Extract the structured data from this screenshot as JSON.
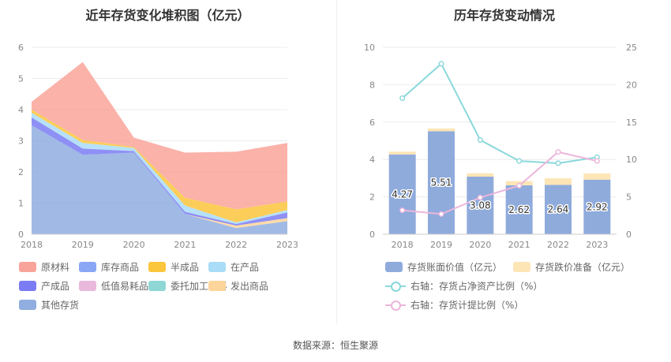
{
  "left": {
    "title": "近年存货变化堆积图（亿元）",
    "legend": [
      {
        "label": "原材料",
        "color": "#f9a49a"
      },
      {
        "label": "库存商品",
        "color": "#8aa7f5"
      },
      {
        "label": "半成品",
        "color": "#fbc63c"
      },
      {
        "label": "在产品",
        "color": "#a9dcf7"
      },
      {
        "label": "产成品",
        "color": "#7b7cf3"
      },
      {
        "label": "低值易耗品",
        "color": "#e9b9dd"
      },
      {
        "label": "委托加工材料",
        "color": "#8ed7d5"
      },
      {
        "label": "发出商品",
        "color": "#fdd59a"
      },
      {
        "label": "其他存货",
        "color": "#91aee0"
      }
    ]
  },
  "right": {
    "title": "历年存货变动情况",
    "legend": [
      {
        "label": "存货账面价值（亿元）",
        "color": "#8fabdc",
        "kind": "bar"
      },
      {
        "label": "存货跌价准备（亿元）",
        "color": "#fde5b6",
        "kind": "bar"
      },
      {
        "label": "右轴：存货占净资产比例（%）",
        "color": "#8ad8db",
        "kind": "line"
      },
      {
        "label": "右轴：存货计提比例（%）",
        "color": "#ecb6dc",
        "kind": "line"
      }
    ]
  },
  "source": "数据来源：恒生聚源",
  "chart_data": [
    {
      "type": "area",
      "stacked": true,
      "title": "近年存货变化堆积图（亿元）",
      "x": [
        "2018",
        "2019",
        "2020",
        "2021",
        "2022",
        "2023"
      ],
      "ylim": [
        0,
        6
      ],
      "yticks": [
        0,
        1,
        2,
        3,
        4,
        5,
        6
      ],
      "series": [
        {
          "name": "其他存货",
          "color": "#91aee0",
          "values": [
            3.5,
            2.55,
            2.62,
            0.65,
            0.2,
            0.42
          ]
        },
        {
          "name": "发出商品",
          "color": "#fdd59a",
          "values": [
            0.0,
            0.0,
            0.0,
            0.0,
            0.08,
            0.1
          ]
        },
        {
          "name": "委托加工材料",
          "color": "#8ed7d5",
          "values": [
            0.0,
            0.0,
            0.0,
            0.0,
            0.0,
            0.0
          ]
        },
        {
          "name": "低值易耗品",
          "color": "#e9b9dd",
          "values": [
            0.0,
            0.0,
            0.0,
            0.0,
            0.0,
            0.0
          ]
        },
        {
          "name": "产成品",
          "color": "#7b7cf3",
          "values": [
            0.25,
            0.2,
            0.05,
            0.07,
            0.05,
            0.18
          ]
        },
        {
          "name": "在产品",
          "color": "#a9dcf7",
          "values": [
            0.15,
            0.18,
            0.1,
            0.2,
            0.05,
            0.08
          ]
        },
        {
          "name": "库存商品",
          "color": "#8aa7f5",
          "values": [
            0.0,
            0.0,
            0.0,
            0.0,
            0.0,
            0.0
          ]
        },
        {
          "name": "半成品",
          "color": "#fbc63c",
          "values": [
            0.1,
            0.1,
            0.03,
            0.25,
            0.42,
            0.27
          ]
        },
        {
          "name": "原材料",
          "color": "#f9a49a",
          "values": [
            0.25,
            2.5,
            0.3,
            1.45,
            1.85,
            1.88
          ]
        }
      ],
      "grid": true
    },
    {
      "type": "bar",
      "stacked": true,
      "title": "历年存货变动情况",
      "categories": [
        "2018",
        "2019",
        "2020",
        "2021",
        "2022",
        "2023"
      ],
      "ylim": [
        0,
        10
      ],
      "yticks": [
        0,
        2,
        4,
        6,
        8,
        10
      ],
      "y2lim": [
        0,
        25
      ],
      "y2ticks": [
        0,
        5,
        10,
        15,
        20,
        25
      ],
      "series": [
        {
          "name": "存货账面价值（亿元）",
          "color": "#8fabdc",
          "values": [
            4.27,
            5.51,
            3.08,
            2.62,
            2.64,
            2.92
          ],
          "labels": [
            "4.27",
            "5.51",
            "3.08",
            "2.62",
            "2.64",
            "2.92"
          ]
        },
        {
          "name": "存货跌价准备（亿元）",
          "color": "#fde5b6",
          "values": [
            0.15,
            0.15,
            0.18,
            0.22,
            0.35,
            0.33
          ]
        }
      ],
      "lines": [
        {
          "name": "右轴：存货占净资产比例（%）",
          "color": "#8ad8db",
          "axis": "right",
          "values": [
            18.2,
            22.8,
            12.6,
            9.8,
            9.5,
            10.3
          ]
        },
        {
          "name": "右轴：存货计提比例（%）",
          "color": "#ecb6dc",
          "axis": "right",
          "values": [
            3.2,
            2.7,
            4.9,
            6.5,
            11.0,
            9.8
          ]
        }
      ],
      "grid": true
    }
  ]
}
